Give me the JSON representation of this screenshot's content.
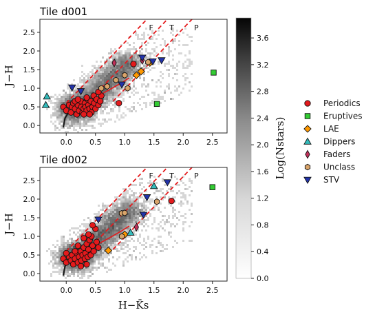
{
  "chart_data": {
    "type": "scatter",
    "x_range": [
      -0.45,
      2.75
    ],
    "y_range": [
      -0.2,
      2.85
    ],
    "xticks": [
      "0.0",
      "0.5",
      "1.0",
      "1.5",
      "2.0",
      "2.5"
    ],
    "yticks": [
      "0.0",
      "0.5",
      "1.0",
      "1.5",
      "2.0",
      "2.5"
    ],
    "xlabel": "H−K̄s",
    "ylabel": "J−H",
    "colorbar": {
      "label": "Log(Nstars)",
      "range": [
        0.0,
        3.9
      ],
      "ticks": [
        "0.0",
        "0.4",
        "0.8",
        "1.2",
        "1.6",
        "2.0",
        "2.4",
        "2.8",
        "3.2",
        "3.6"
      ]
    },
    "reddening_line_labels": [
      "F",
      "T",
      "P"
    ],
    "legend": [
      {
        "name": "Periodics",
        "marker": "circle",
        "color": "#e41a1c"
      },
      {
        "name": "Eruptives",
        "marker": "square",
        "color": "#33cc33"
      },
      {
        "name": "LAE",
        "marker": "diamond",
        "color": "#ff9900"
      },
      {
        "name": "Dippers",
        "marker": "triangle-up",
        "color": "#33bbbb"
      },
      {
        "name": "Faders",
        "marker": "thin-diamond",
        "color": "#c0305a"
      },
      {
        "name": "Unclass",
        "marker": "hexagon",
        "color": "#d9a46a"
      },
      {
        "name": "STV",
        "marker": "triangle-down",
        "color": "#2233aa"
      }
    ],
    "panels": [
      {
        "title": "Tile d001",
        "series": {
          "Periodics": [
            [
              -0.05,
              0.5
            ],
            [
              0.0,
              0.4
            ],
            [
              0.05,
              0.55
            ],
            [
              0.08,
              0.35
            ],
            [
              0.1,
              0.5
            ],
            [
              0.12,
              0.6
            ],
            [
              0.15,
              0.45
            ],
            [
              0.18,
              0.3
            ],
            [
              0.2,
              0.55
            ],
            [
              0.22,
              0.4
            ],
            [
              0.25,
              0.65
            ],
            [
              0.26,
              0.5
            ],
            [
              0.28,
              0.35
            ],
            [
              0.3,
              0.45
            ],
            [
              0.32,
              0.6
            ],
            [
              0.33,
              0.5
            ],
            [
              0.35,
              0.4
            ],
            [
              0.37,
              0.7
            ],
            [
              0.38,
              0.55
            ],
            [
              0.4,
              0.45
            ],
            [
              0.42,
              0.65
            ],
            [
              0.43,
              0.35
            ],
            [
              0.45,
              0.5
            ],
            [
              0.47,
              0.8
            ],
            [
              0.48,
              0.6
            ],
            [
              0.5,
              0.45
            ],
            [
              0.52,
              0.7
            ],
            [
              0.55,
              0.55
            ],
            [
              0.58,
              0.65
            ],
            [
              0.6,
              0.8
            ],
            [
              0.3,
              0.3
            ],
            [
              0.15,
              0.65
            ],
            [
              0.35,
              0.75
            ],
            [
              0.2,
              0.7
            ],
            [
              0.55,
              0.9
            ],
            [
              1.15,
              1.65
            ],
            [
              0.9,
              0.6
            ],
            [
              0.4,
              0.3
            ]
          ],
          "Eruptives": [
            [
              1.55,
              0.58
            ],
            [
              2.52,
              1.42
            ]
          ],
          "LAE": [
            [
              1.2,
              1.35
            ],
            [
              1.28,
              1.45
            ],
            [
              1.43,
              1.68
            ]
          ],
          "Dippers": [
            [
              -0.33,
              0.78
            ],
            [
              -0.35,
              0.55
            ]
          ],
          "Faders": [
            [
              0.82,
              1.68
            ],
            [
              1.3,
              1.75
            ]
          ],
          "Unclass": [
            [
              0.7,
              1.05
            ],
            [
              0.85,
              1.22
            ],
            [
              1.0,
              1.35
            ],
            [
              1.05,
              1.0
            ],
            [
              1.4,
              1.7
            ],
            [
              0.6,
              1.0
            ]
          ],
          "STV": [
            [
              0.1,
              1.02
            ],
            [
              0.25,
              0.92
            ],
            [
              0.95,
              1.1
            ],
            [
              1.3,
              1.82
            ],
            [
              1.48,
              1.72
            ],
            [
              1.63,
              1.75
            ]
          ]
        }
      },
      {
        "title": "Tile d002",
        "series": {
          "Periodics": [
            [
              -0.05,
              0.4
            ],
            [
              0.0,
              0.3
            ],
            [
              0.05,
              0.45
            ],
            [
              0.08,
              0.35
            ],
            [
              0.1,
              0.5
            ],
            [
              0.12,
              0.25
            ],
            [
              0.15,
              0.4
            ],
            [
              0.18,
              0.55
            ],
            [
              0.2,
              0.3
            ],
            [
              0.22,
              0.45
            ],
            [
              0.25,
              0.6
            ],
            [
              0.26,
              0.35
            ],
            [
              0.28,
              0.5
            ],
            [
              0.3,
              0.7
            ],
            [
              0.32,
              0.4
            ],
            [
              0.33,
              0.55
            ],
            [
              0.35,
              0.8
            ],
            [
              0.37,
              0.45
            ],
            [
              0.38,
              0.65
            ],
            [
              0.4,
              0.9
            ],
            [
              0.42,
              0.5
            ],
            [
              0.43,
              1.0
            ],
            [
              0.45,
              0.75
            ],
            [
              0.47,
              0.6
            ],
            [
              0.5,
              1.2
            ],
            [
              0.52,
              0.85
            ],
            [
              0.55,
              0.7
            ],
            [
              0.3,
              0.95
            ],
            [
              0.25,
              0.2
            ],
            [
              0.15,
              0.6
            ],
            [
              0.38,
              1.05
            ],
            [
              0.45,
              1.3
            ],
            [
              0.35,
              0.25
            ],
            [
              0.0,
              0.55
            ],
            [
              0.2,
              0.75
            ],
            [
              1.8,
              1.95
            ]
          ],
          "Eruptives": [
            [
              2.5,
              2.32
            ]
          ],
          "LAE": [
            [
              0.72,
              0.62
            ],
            [
              1.0,
              1.05
            ]
          ],
          "Dippers": [
            [
              1.1,
              1.1
            ],
            [
              1.5,
              2.35
            ]
          ],
          "Faders": [
            [
              1.2,
              1.25
            ]
          ],
          "Unclass": [
            [
              0.95,
              1.0
            ],
            [
              0.95,
              1.62
            ],
            [
              1.0,
              1.63
            ],
            [
              1.55,
              1.93
            ]
          ],
          "STV": [
            [
              0.55,
              1.45
            ],
            [
              1.32,
              1.58
            ],
            [
              1.38,
              2.05
            ],
            [
              1.73,
              2.45
            ]
          ]
        }
      }
    ]
  }
}
